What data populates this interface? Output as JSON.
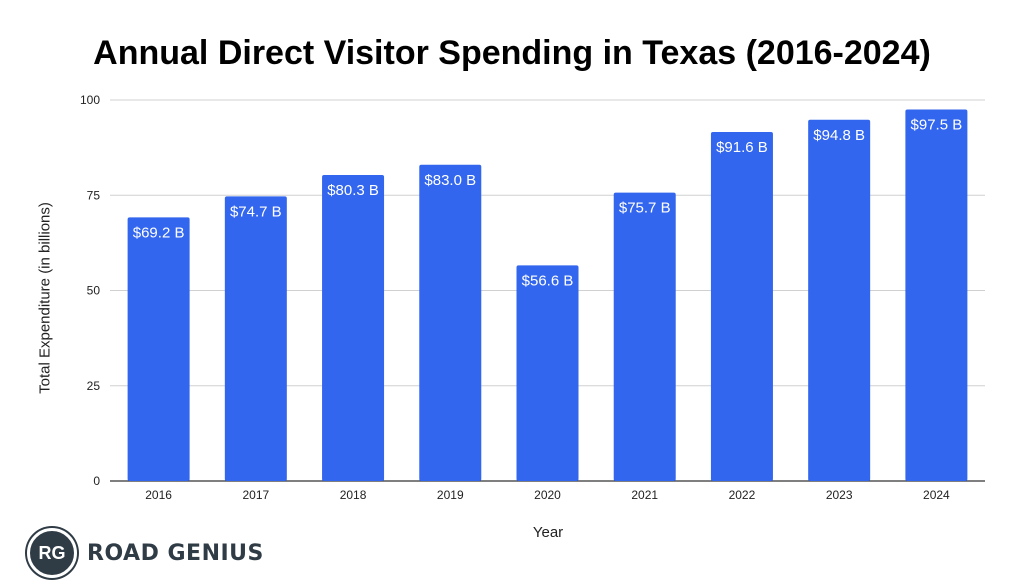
{
  "chart_data": {
    "type": "bar",
    "title": "Annual Direct Visitor Spending in Texas (2016-2024)",
    "xlabel": "Year",
    "ylabel": "Total Expenditure (in billions)",
    "categories": [
      "2016",
      "2017",
      "2018",
      "2019",
      "2020",
      "2021",
      "2022",
      "2023",
      "2024"
    ],
    "values": [
      69.2,
      74.7,
      80.3,
      83.0,
      56.6,
      75.7,
      91.6,
      94.8,
      97.5
    ],
    "data_labels": [
      "$69.2 B",
      "$74.7 B",
      "$80.3 B",
      "$83.0 B",
      "$56.6 B",
      "$75.7 B",
      "$91.6 B",
      "$94.8 B",
      "$97.5 B"
    ],
    "ylim": [
      0,
      100
    ],
    "yticks": [
      "0",
      "25",
      "50",
      "75",
      "100"
    ],
    "grid": true,
    "bar_color": "#3366ee",
    "label_color": "#ffffff"
  },
  "brand": {
    "initials": "RG",
    "name": "ROAD GENIUS"
  }
}
